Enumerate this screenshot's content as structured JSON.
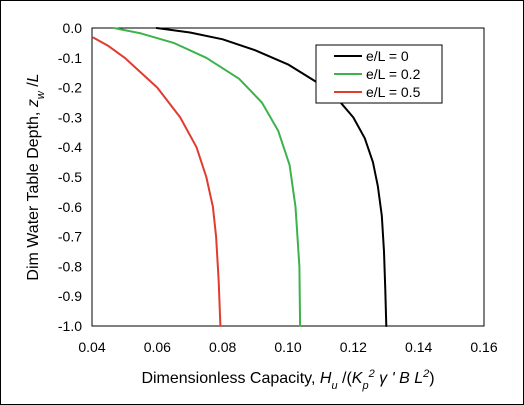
{
  "chart_data": {
    "type": "line",
    "xlabel": {
      "parts": [
        {
          "t": "Dimensionless Capacity, ",
          "style": "normal"
        },
        {
          "t": "H",
          "style": "italic"
        },
        {
          "t": "u",
          "style": "italic-sub"
        },
        {
          "t": " /(",
          "style": "normal"
        },
        {
          "t": "K",
          "style": "italic"
        },
        {
          "t": "p",
          "style": "italic-sub"
        },
        {
          "t": "2",
          "style": "italic-sup"
        },
        {
          "t": " γ ' B L",
          "style": "italic"
        },
        {
          "t": "2",
          "style": "italic-sup"
        },
        {
          "t": ")",
          "style": "normal"
        }
      ]
    },
    "ylabel": {
      "parts": [
        {
          "t": "Dim Water Table Depth, ",
          "style": "normal"
        },
        {
          "t": "z",
          "style": "italic"
        },
        {
          "t": "w",
          "style": "italic-sub"
        },
        {
          "t": " /",
          "style": "normal"
        },
        {
          "t": "L",
          "style": "italic"
        }
      ]
    },
    "xlim": [
      0.04,
      0.16
    ],
    "ylim": [
      -1.0,
      0.0
    ],
    "xticks": [
      "0.04",
      "0.06",
      "0.08",
      "0.10",
      "0.12",
      "0.14",
      "0.16"
    ],
    "xtick_values": [
      0.04,
      0.06,
      0.08,
      0.1,
      0.12,
      0.14,
      0.16
    ],
    "yticks": [
      "0.0",
      "-0.1",
      "-0.2",
      "-0.3",
      "-0.4",
      "-0.5",
      "-0.6",
      "-0.7",
      "-0.8",
      "-0.9",
      "-1.0"
    ],
    "ytick_values": [
      0.0,
      -0.1,
      -0.2,
      -0.3,
      -0.4,
      -0.5,
      -0.6,
      -0.7,
      -0.8,
      -0.9,
      -1.0
    ],
    "grid": false,
    "legend_position": "top-right",
    "series": [
      {
        "name": "e/L = 0",
        "color": "#000000",
        "x": [
          0.0598,
          0.07,
          0.08,
          0.09,
          0.1,
          0.11,
          0.115,
          0.12,
          0.1235,
          0.126,
          0.1275,
          0.1287,
          0.1294,
          0.1298,
          0.1301
        ],
        "y": [
          0.0,
          -0.015,
          -0.038,
          -0.075,
          -0.122,
          -0.19,
          -0.236,
          -0.3,
          -0.37,
          -0.45,
          -0.53,
          -0.63,
          -0.75,
          -0.88,
          -1.0
        ]
      },
      {
        "name": "e/L = 0.2",
        "color": "#3cb34a",
        "x": [
          0.0467,
          0.055,
          0.065,
          0.075,
          0.085,
          0.092,
          0.097,
          0.1005,
          0.1023,
          0.1035,
          0.1037
        ],
        "y": [
          0.0,
          -0.018,
          -0.05,
          -0.1,
          -0.17,
          -0.25,
          -0.345,
          -0.46,
          -0.6,
          -0.8,
          -1.0
        ]
      },
      {
        "name": "e/L = 0.5",
        "color": "#e23b2e",
        "x": [
          0.0405,
          0.045,
          0.05,
          0.06,
          0.067,
          0.072,
          0.075,
          0.077,
          0.078,
          0.0788,
          0.0793
        ],
        "y": [
          -0.033,
          -0.06,
          -0.1,
          -0.2,
          -0.3,
          -0.4,
          -0.5,
          -0.6,
          -0.7,
          -0.85,
          -1.0
        ]
      }
    ]
  }
}
